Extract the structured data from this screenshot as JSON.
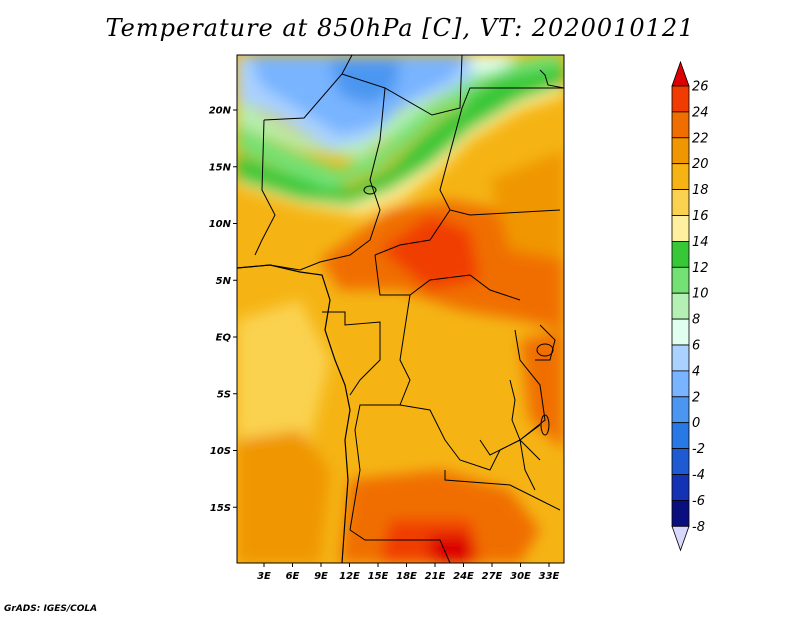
{
  "title": "Temperature at 850hPa [C], VT: 2020010121",
  "credit": "GrADS: IGES/COLA",
  "lat_ticks": [
    {
      "label": "20N",
      "value": 20
    },
    {
      "label": "15N",
      "value": 15
    },
    {
      "label": "10N",
      "value": 10
    },
    {
      "label": "5N",
      "value": 5
    },
    {
      "label": "EQ",
      "value": 0
    },
    {
      "label": "5S",
      "value": -5
    },
    {
      "label": "10S",
      "value": -10
    },
    {
      "label": "15S",
      "value": -15
    }
  ],
  "lon_ticks": [
    {
      "label": "3E",
      "value": 3
    },
    {
      "label": "6E",
      "value": 6
    },
    {
      "label": "9E",
      "value": 9
    },
    {
      "label": "12E",
      "value": 12
    },
    {
      "label": "15E",
      "value": 15
    },
    {
      "label": "18E",
      "value": 18
    },
    {
      "label": "21E",
      "value": 21
    },
    {
      "label": "24E",
      "value": 24
    },
    {
      "label": "27E",
      "value": 27
    },
    {
      "label": "30E",
      "value": 30
    },
    {
      "label": "33E",
      "value": 33
    }
  ],
  "colorbar": {
    "labels": [
      "26",
      "24",
      "22",
      "20",
      "18",
      "16",
      "14",
      "12",
      "10",
      "8",
      "6",
      "4",
      "2",
      "0",
      "-2",
      "-4",
      "-6",
      "-8"
    ],
    "colors_top_to_bottom": [
      "#dc0000",
      "#f03c00",
      "#f06e00",
      "#f09600",
      "#f5b414",
      "#fad250",
      "#fff0a0",
      "#37c837",
      "#73e173",
      "#b4f0b4",
      "#e1fff0",
      "#aad2ff",
      "#78b4ff",
      "#4b96f0",
      "#2878e6",
      "#1e5ad2",
      "#1432b4",
      "#0a0f80",
      "#d8d8ff"
    ]
  },
  "colors": {
    "background": "#ffffff",
    "boundary": "#000000"
  }
}
